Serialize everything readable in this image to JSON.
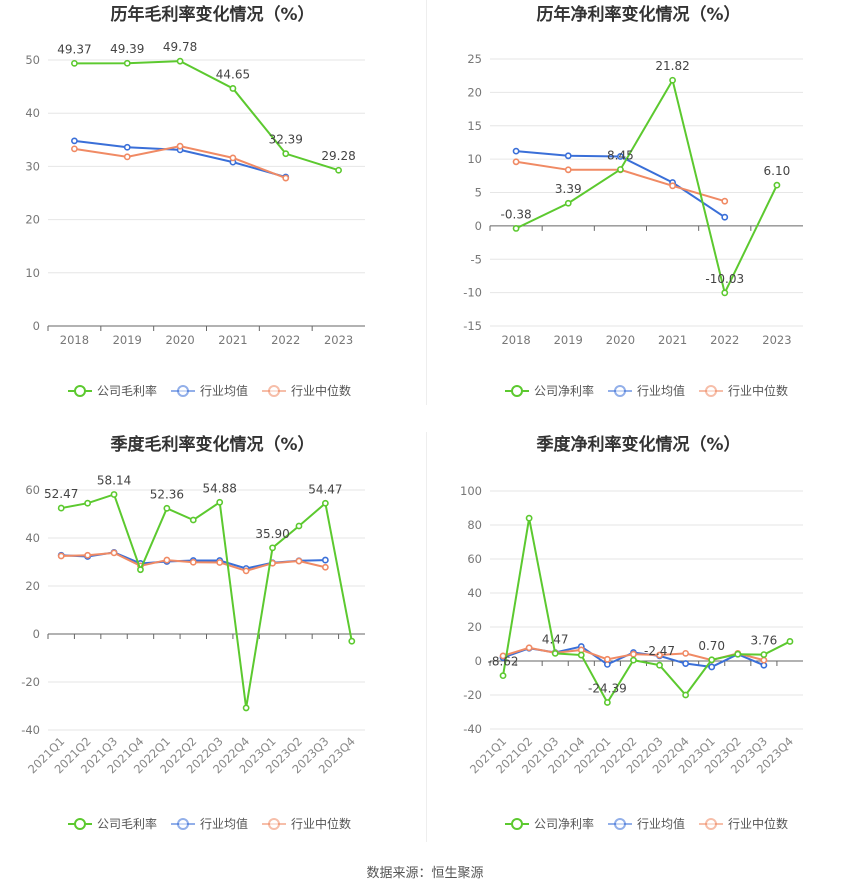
{
  "source": "数据来源：恒生聚源",
  "colors": {
    "company": "#5cc92f",
    "avg": "#3a6fd8",
    "median": "#f08a64"
  },
  "chart_data": [
    {
      "type": "line",
      "title": "历年毛利率变化情况（%）",
      "categories": [
        "2018",
        "2019",
        "2020",
        "2021",
        "2022",
        "2023"
      ],
      "ylim": [
        0,
        50
      ],
      "yticks": [
        0,
        10,
        20,
        30,
        40,
        50
      ],
      "series": [
        {
          "name": "公司毛利率",
          "key": "company",
          "values": [
            49.37,
            49.39,
            49.78,
            44.65,
            32.39,
            29.28
          ],
          "labels": [
            "49.37",
            "49.39",
            "49.78",
            "44.65",
            "32.39",
            "29.28"
          ]
        },
        {
          "name": "行业均值",
          "key": "avg",
          "values": [
            34.8,
            33.6,
            33.1,
            30.8,
            28.0,
            null
          ]
        },
        {
          "name": "行业中位数",
          "key": "median",
          "values": [
            33.3,
            31.8,
            33.8,
            31.6,
            27.8,
            null
          ]
        }
      ],
      "legend": "bottom"
    },
    {
      "type": "line",
      "title": "历年净利率变化情况（%）",
      "categories": [
        "2018",
        "2019",
        "2020",
        "2021",
        "2022",
        "2023"
      ],
      "ylim": [
        -15,
        25
      ],
      "yticks": [
        -15,
        -10,
        -5,
        0,
        5,
        10,
        15,
        20,
        25
      ],
      "series": [
        {
          "name": "公司净利率",
          "key": "company",
          "values": [
            -0.38,
            3.39,
            8.45,
            21.82,
            -10.03,
            6.1
          ],
          "labels": [
            "-0.38",
            "3.39",
            "8.45",
            "21.82",
            "-10.03",
            "6.10"
          ]
        },
        {
          "name": "行业均值",
          "key": "avg",
          "values": [
            11.2,
            10.5,
            10.4,
            6.5,
            1.3,
            null
          ]
        },
        {
          "name": "行业中位数",
          "key": "median",
          "values": [
            9.6,
            8.4,
            8.4,
            6.0,
            3.7,
            null
          ]
        }
      ],
      "legend": "bottom"
    },
    {
      "type": "line",
      "title": "季度毛利率变化情况（%）",
      "categories": [
        "2021Q1",
        "2021Q2",
        "2021Q3",
        "2021Q4",
        "2022Q1",
        "2022Q2",
        "2022Q3",
        "2022Q4",
        "2023Q1",
        "2023Q2",
        "2023Q3",
        "2023Q4"
      ],
      "ylim": [
        -40,
        60
      ],
      "yticks": [
        -40,
        -20,
        0,
        20,
        40,
        60
      ],
      "series": [
        {
          "name": "公司毛利率",
          "key": "company",
          "values": [
            52.47,
            54.5,
            58.14,
            26.8,
            52.36,
            47.5,
            54.88,
            -30.8,
            35.9,
            45.0,
            54.47,
            -3.0
          ],
          "labels": [
            "52.47",
            "",
            "58.14",
            "",
            "52.36",
            "",
            "54.88",
            "",
            "35.90",
            "",
            "54.47",
            ""
          ]
        },
        {
          "name": "行业均值",
          "key": "avg",
          "values": [
            32.8,
            32.3,
            34.0,
            29.4,
            30.2,
            30.6,
            30.6,
            27.3,
            29.7,
            30.5,
            30.8,
            null
          ]
        },
        {
          "name": "行业中位数",
          "key": "median",
          "values": [
            32.5,
            32.8,
            33.8,
            28.4,
            30.8,
            29.9,
            29.8,
            26.3,
            29.5,
            30.4,
            27.8,
            null
          ]
        }
      ],
      "legend": "bottom"
    },
    {
      "type": "line",
      "title": "季度净利率变化情况（%）",
      "categories": [
        "2021Q1",
        "2021Q2",
        "2021Q3",
        "2021Q4",
        "2022Q1",
        "2022Q2",
        "2022Q3",
        "2022Q4",
        "2023Q1",
        "2023Q2",
        "2023Q3",
        "2023Q4"
      ],
      "ylim": [
        -40,
        100
      ],
      "yticks": [
        -40,
        -20,
        0,
        20,
        40,
        60,
        80,
        100
      ],
      "series": [
        {
          "name": "公司净利率",
          "key": "company",
          "values": [
            -8.62,
            84.0,
            4.47,
            3.5,
            -24.39,
            0.5,
            -2.47,
            -20.0,
            0.7,
            4.0,
            3.76,
            11.5
          ],
          "labels": [
            "-8.62",
            "",
            "4.47",
            "",
            "-24.39",
            "",
            "-2.47",
            "",
            "0.70",
            "",
            "3.76",
            ""
          ]
        },
        {
          "name": "行业均值",
          "key": "avg",
          "values": [
            2.0,
            7.5,
            5.0,
            8.5,
            -2.0,
            5.0,
            3.0,
            -1.5,
            -3.5,
            4.0,
            -2.5,
            null
          ]
        },
        {
          "name": "行业中位数",
          "key": "median",
          "values": [
            3.0,
            7.8,
            4.8,
            6.5,
            1.0,
            4.0,
            3.5,
            4.5,
            0.5,
            4.5,
            0.5,
            null
          ]
        }
      ],
      "legend": "bottom"
    }
  ]
}
